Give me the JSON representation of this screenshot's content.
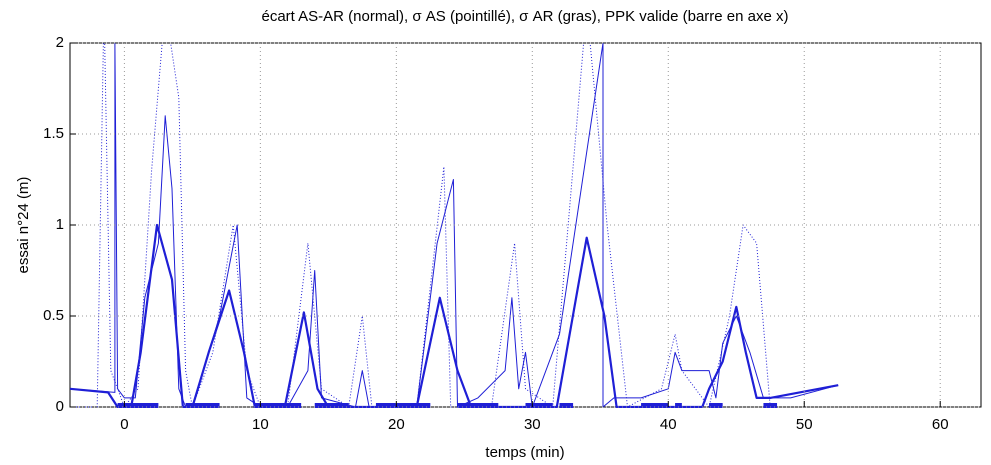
{
  "chart_data": {
    "type": "line",
    "title": "écart AS-AR (normal), σ AS (pointillé), σ AR (gras), PPK valide (barre en axe x)",
    "xlabel": "temps (min)",
    "ylabel": "essai n°24 (m)",
    "xlim": [
      -4,
      63
    ],
    "ylim": [
      0,
      2
    ],
    "xticks": [
      0,
      10,
      20,
      30,
      40,
      50,
      60
    ],
    "yticks": [
      0,
      0.5,
      1,
      1.5,
      2
    ],
    "grid": true,
    "series": [
      {
        "color": "#1f1fd6",
        "style": "solid",
        "x": [
          -4,
          -0.7,
          -0.7,
          -0.5,
          0,
          0.8,
          1.5,
          2.5,
          3,
          3.5,
          4,
          4.5,
          5,
          7,
          8.3,
          9,
          10,
          12,
          13.5,
          14,
          14.5,
          17,
          17.5,
          18,
          21.5,
          23,
          24.2,
          24.5,
          26,
          28,
          28.5,
          29,
          29.5,
          30,
          32,
          35.2,
          35.2,
          36,
          38,
          40,
          40.5,
          41,
          43,
          43.5,
          44,
          45,
          46,
          47,
          49,
          52.5
        ],
        "values": [
          0.1,
          0.08,
          2,
          0.1,
          0.05,
          0.05,
          0.6,
          0.9,
          1.6,
          1.2,
          0.1,
          0,
          0,
          0.5,
          1.0,
          0.05,
          0,
          0,
          0.2,
          0.75,
          0.05,
          0,
          0.2,
          0,
          0,
          0.9,
          1.25,
          0,
          0.05,
          0.2,
          0.6,
          0.1,
          0.3,
          0,
          0.4,
          2,
          0,
          0.05,
          0.05,
          0.1,
          0.3,
          0.2,
          0.2,
          0.05,
          0.35,
          0.5,
          0.3,
          0.05,
          0.05,
          0.12
        ]
      },
      {
        "color": "#1f1fd6",
        "style": "dotted",
        "x": [
          -4,
          -2,
          -1.5,
          -1,
          0,
          1,
          2,
          3,
          4,
          4.5,
          5,
          6.5,
          8,
          9,
          10,
          12,
          13.5,
          14.5,
          16.5,
          17.5,
          18.2,
          21.5,
          23.5,
          24,
          27,
          28.7,
          29.5,
          31.5,
          34,
          35.5,
          37,
          39.5,
          40.5,
          41,
          43,
          44.5,
          45.5,
          46.5,
          47.5
        ],
        "values": [
          0,
          0,
          2.2,
          0.2,
          0,
          0.1,
          1.3,
          2.2,
          1.7,
          0.2,
          0,
          0.3,
          1.0,
          0.2,
          0,
          0,
          0.9,
          0.1,
          0,
          0.5,
          0,
          0,
          1.32,
          0,
          0,
          0.9,
          0.1,
          0,
          2.2,
          1,
          0,
          0.1,
          0.4,
          0.2,
          0,
          0.5,
          1.0,
          0.9,
          0
        ]
      },
      {
        "color": "#1f1fd6",
        "style": "bold",
        "x": [
          -4,
          -1.2,
          -0.5,
          0.5,
          1.2,
          2.4,
          3.5,
          4.3,
          5,
          6.2,
          7.7,
          8.8,
          9.6,
          11.8,
          13.2,
          14.2,
          15,
          21.5,
          23.2,
          24.5,
          25.5,
          31.8,
          34,
          35.3,
          36.2,
          42.5,
          43,
          44,
          45,
          45.7,
          46.5,
          47.5,
          52.5
        ],
        "values": [
          0.1,
          0.08,
          0,
          0,
          0.3,
          1.0,
          0.7,
          0,
          0,
          0.3,
          0.64,
          0.3,
          0,
          0,
          0.52,
          0.1,
          0,
          0,
          0.6,
          0.2,
          0,
          0,
          0.93,
          0.5,
          0,
          0,
          0.1,
          0.25,
          0.55,
          0.3,
          0.05,
          0.05,
          0.12
        ]
      }
    ],
    "ppk_valid": [
      [
        -0.5,
        2.5
      ],
      [
        4.5,
        7
      ],
      [
        9.5,
        13
      ],
      [
        14,
        16.5
      ],
      [
        18.5,
        22.5
      ],
      [
        24.5,
        27.5
      ],
      [
        29.5,
        31.5
      ],
      [
        32,
        33
      ],
      [
        38,
        40
      ],
      [
        40.5,
        41
      ],
      [
        43,
        44
      ],
      [
        47,
        48
      ]
    ]
  }
}
